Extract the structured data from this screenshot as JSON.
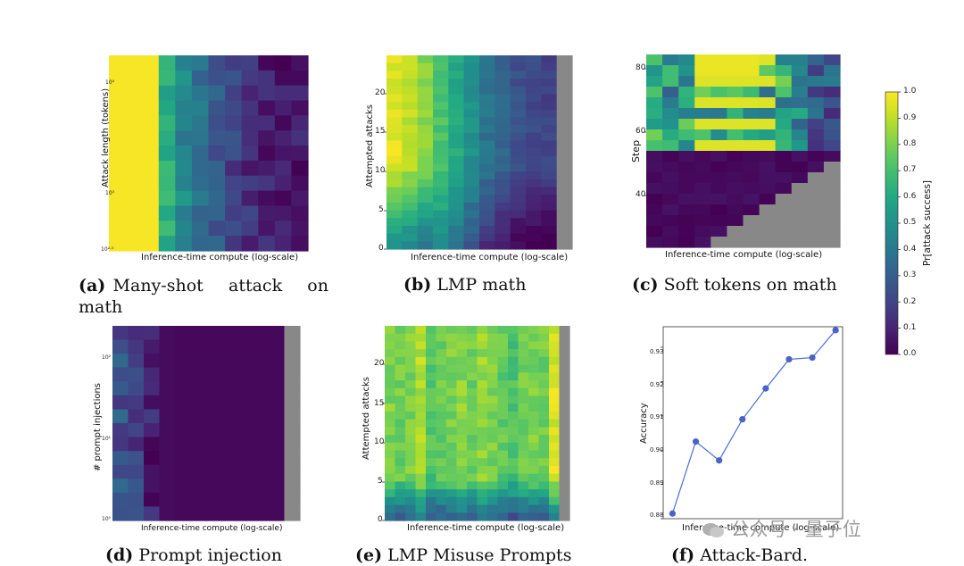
{
  "colors": {
    "gray": "#888888",
    "line": "#4a6fd6",
    "marker": "#4b63c9"
  },
  "colorbar": {
    "label": "Pr[attack success]",
    "ticks": [
      "1.0",
      "0.9",
      "0.8",
      "0.7",
      "0.6",
      "0.5",
      "0.4",
      "0.3",
      "0.2",
      "0.1",
      "0.0"
    ]
  },
  "watermark": {
    "text": "公众号 · 量子位"
  },
  "panels": {
    "a": {
      "caption_tag": "(a)",
      "caption_text": "Many-shot attack on math",
      "xlabel": "Inference-time compute (log-scale)",
      "ylabel": "Attack length (tokens)",
      "yticks": [
        "10⁴",
        "10³",
        "10²·⁵"
      ]
    },
    "b": {
      "caption_tag": "(b)",
      "caption_text": "LMP math",
      "xlabel": "Inference-time compute (log-scale)",
      "ylabel": "Attempted attacks",
      "yticks": [
        "20",
        "15",
        "10",
        "5",
        "0"
      ]
    },
    "c": {
      "caption_tag": "(c)",
      "caption_text": "Soft tokens on math",
      "xlabel": "Inference-time compute (log-scale)",
      "ylabel": "Step",
      "yticks": [
        "80",
        "60",
        "40"
      ]
    },
    "d": {
      "caption_tag": "(d)",
      "caption_text": "Prompt injection",
      "xlabel": "Inference-time compute (log-scale)",
      "ylabel": "# prompt injections",
      "yticks": [
        "10²",
        "10¹",
        "10⁰"
      ]
    },
    "e": {
      "caption_tag": "(e)",
      "caption_text": "LMP Misuse Prompts",
      "xlabel": "Inference-time compute (log-scale)",
      "ylabel": "Attempted attacks",
      "yticks": [
        "20",
        "15",
        "10",
        "5",
        "0"
      ]
    },
    "f": {
      "caption_tag": "(f)",
      "caption_text": "Attack-Bard.",
      "xlabel": "Inference-time compute (log-scale)",
      "ylabel": "Accuracy",
      "yticks": [
        "0.93",
        "0.92",
        "0.91",
        "0.90",
        "0.89",
        "0.88"
      ]
    }
  },
  "chart_data": [
    {
      "id": "a",
      "type": "heatmap",
      "title": "Many-shot attack on math",
      "xlabel": "Inference-time compute (log-scale)",
      "ylabel": "Attack length (tokens)",
      "rows": 13,
      "cols": 12,
      "column_means": [
        1.0,
        1.0,
        1.0,
        0.62,
        0.46,
        0.36,
        0.28,
        0.2,
        0.13,
        0.09,
        0.07,
        0.08
      ],
      "gray_columns": 0
    },
    {
      "id": "b",
      "type": "heatmap",
      "title": "LMP math",
      "xlabel": "Inference-time compute (log-scale)",
      "ylabel": "Attempted attacks",
      "ylim": [
        0,
        25
      ],
      "rows": 25,
      "cols": 12,
      "column_means": [
        0.95,
        0.9,
        0.82,
        0.72,
        0.6,
        0.5,
        0.38,
        0.32,
        0.25,
        0.22,
        0.2,
        null
      ],
      "gray_columns": 1
    },
    {
      "id": "c",
      "type": "heatmap",
      "title": "Soft tokens on math",
      "xlabel": "Inference-time compute (log-scale)",
      "ylabel": "Step",
      "ylim": [
        25,
        86
      ],
      "rows": 18,
      "cols": 12,
      "gray_region": "bottom-right staircase"
    },
    {
      "id": "d",
      "type": "heatmap",
      "title": "Prompt injection",
      "xlabel": "Inference-time compute (log-scale)",
      "ylabel": "# prompt injections",
      "rows": 14,
      "cols": 12,
      "column_means": [
        0.25,
        0.2,
        0.1,
        0.03,
        0.02,
        0.02,
        0.02,
        0.02,
        0.02,
        0.02,
        0.02,
        null
      ],
      "gray_columns": 1
    },
    {
      "id": "e",
      "type": "heatmap",
      "title": "LMP Misuse Prompts",
      "xlabel": "Inference-time compute (log-scale)",
      "ylabel": "Attempted attacks",
      "ylim": [
        0,
        25
      ],
      "rows": 25,
      "cols": 18,
      "column_means": [
        0.8,
        0.78,
        0.8,
        0.88,
        0.72,
        0.76,
        0.8,
        0.82,
        0.78,
        0.84,
        0.8,
        0.76,
        0.72,
        0.78,
        0.8,
        0.78,
        0.95,
        null
      ],
      "gray_columns": 1
    },
    {
      "id": "f",
      "type": "line",
      "title": "Attack-Bard.",
      "xlabel": "Inference-time compute (log-scale)",
      "ylabel": "Accuracy",
      "ylim": [
        0.88,
        0.936
      ],
      "x": [
        1,
        2,
        3,
        4,
        5,
        6,
        7,
        8
      ],
      "series": [
        {
          "name": "Accuracy",
          "values": [
            0.8815,
            0.9025,
            0.897,
            0.909,
            0.918,
            0.9265,
            0.927,
            0.935
          ]
        }
      ]
    }
  ]
}
